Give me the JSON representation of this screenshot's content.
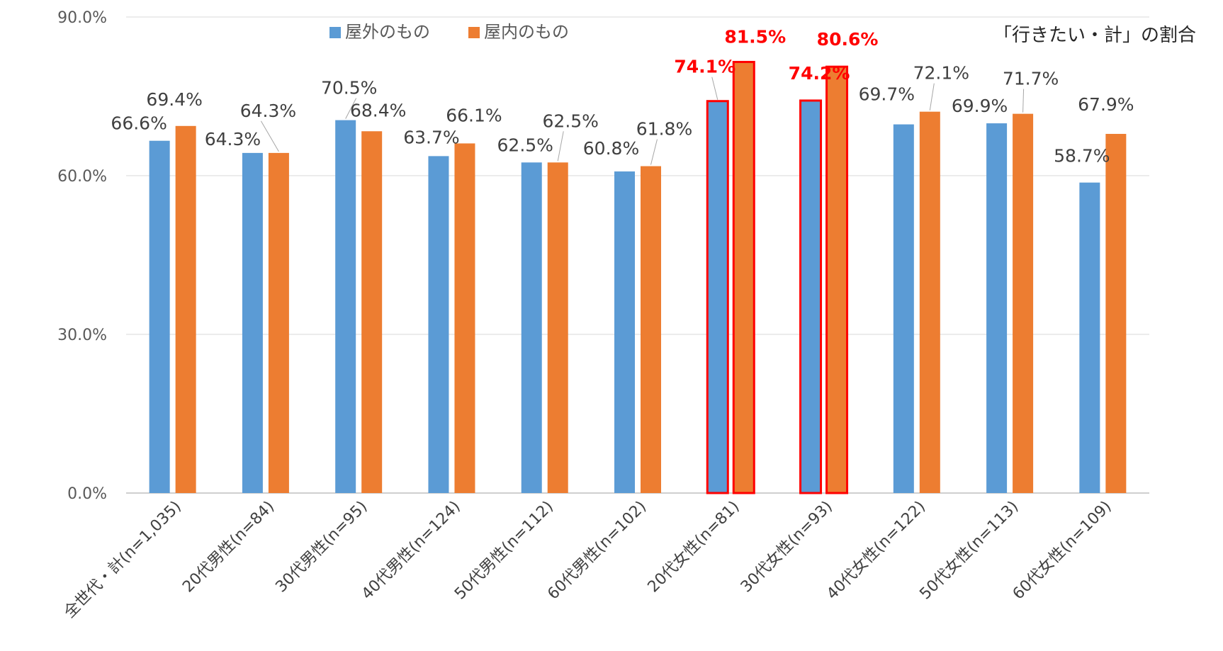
{
  "chart_data": {
    "type": "bar",
    "note": "「行きたい・計」の割合",
    "categories": [
      "全世代・計(n=1,035)",
      "20代男性(n=84)",
      "30代男性(n=95)",
      "40代男性(n=124)",
      "50代男性(n=112)",
      "60代男性(n=102)",
      "20代女性(n=81)",
      "30代女性(n=93)",
      "40代女性(n=122)",
      "50代女性(n=113)",
      "60代女性(n=109)"
    ],
    "series": [
      {
        "name": "屋外のもの",
        "color": "#5b9bd5",
        "values": [
          66.6,
          64.3,
          70.5,
          63.7,
          62.5,
          60.8,
          74.1,
          74.2,
          69.7,
          69.9,
          58.7
        ]
      },
      {
        "name": "屋内のもの",
        "color": "#ed7d31",
        "values": [
          69.4,
          64.3,
          68.4,
          66.1,
          62.5,
          61.8,
          81.5,
          80.6,
          72.1,
          71.7,
          67.9
        ]
      }
    ],
    "value_format": "%",
    "ylim": [
      0,
      90
    ],
    "yticks": [
      0,
      30,
      60,
      90
    ],
    "ytick_labels": [
      "0.0%",
      "30.0%",
      "60.0%",
      "90.0%"
    ],
    "grid": true,
    "legend_position": "top",
    "highlighted_categories": [
      "20代女性(n=81)",
      "30代女性(n=93)"
    ],
    "highlight_color": "#ff0000"
  }
}
